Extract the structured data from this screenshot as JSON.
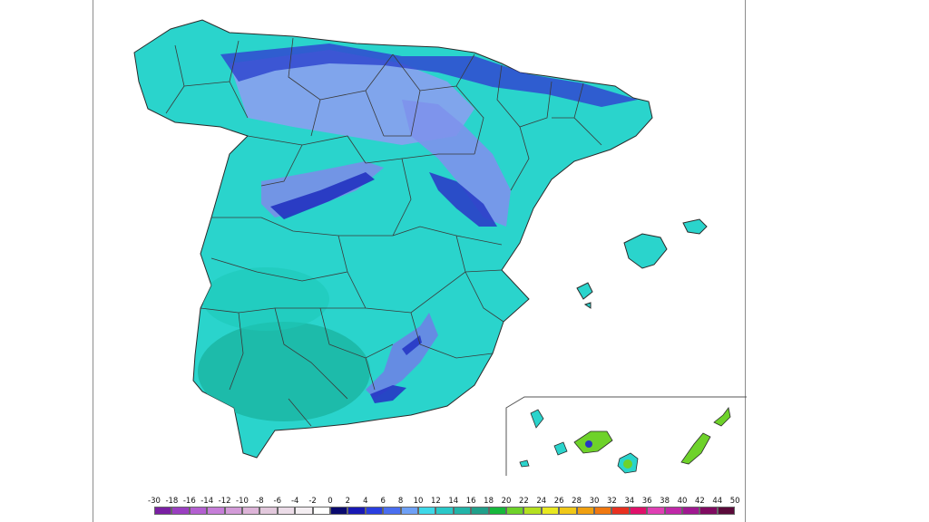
{
  "map": {
    "region": "Spain (Peninsula, Balearic and Canary Islands)",
    "variable": "temperature",
    "legend": {
      "labels": [
        "-30",
        "-18",
        "-16",
        "-14",
        "-12",
        "-10",
        "-8",
        "-6",
        "-4",
        "-2",
        "0",
        "2",
        "4",
        "6",
        "8",
        "10",
        "12",
        "14",
        "16",
        "18",
        "20",
        "22",
        "24",
        "26",
        "28",
        "30",
        "32",
        "34",
        "36",
        "38",
        "40",
        "42",
        "44",
        "50"
      ],
      "colors": [
        "#7a1fa3",
        "#9a3fc0",
        "#b35fd0",
        "#c67ed8",
        "#d39bd8",
        "#ddb4d8",
        "#e2c8dc",
        "#ecdce8",
        "#f4eef2",
        "#ffffff",
        "#0a0a6e",
        "#1818b4",
        "#2a3ee0",
        "#4a6ef0",
        "#6ea0f6",
        "#3ed8e8",
        "#2ac8c8",
        "#22b4a8",
        "#20a08a",
        "#16b83c",
        "#6ed22a",
        "#b4e020",
        "#e8e820",
        "#f0c818",
        "#f0a010",
        "#f07810",
        "#e83020",
        "#e0106a",
        "#e040b4",
        "#c028a8",
        "#a01890",
        "#800a60",
        "#5a0a3a"
      ]
    },
    "colors": {
      "sea": "#ffffff",
      "land_base": "#2ad4cc",
      "land_south": "#1cc0b2",
      "cold_high": "#8899ee",
      "cold_peak": "#2636c4",
      "canary_green": "#6ed22a",
      "borders": "#3a3a3a"
    }
  }
}
